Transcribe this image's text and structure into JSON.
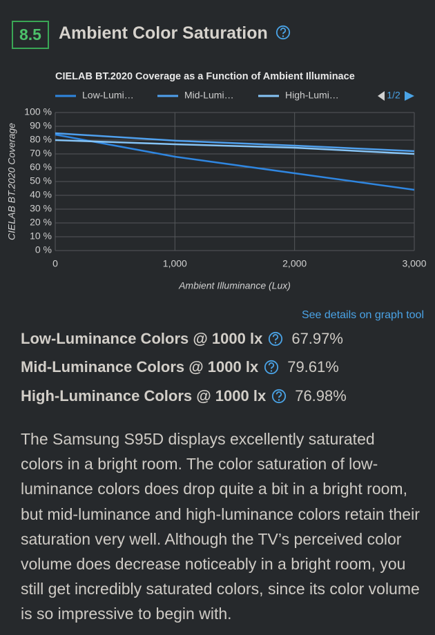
{
  "header": {
    "score": "8.5",
    "title": "Ambient Color Saturation"
  },
  "chart_data": {
    "type": "line",
    "title": "CIELAB BT.2020 Coverage as a Function of Ambient Illuminace",
    "x_label": "Ambient Illuminance (Lux)",
    "y_label": "CIELAB BT.2020 Coverage",
    "legend_page": "1/2",
    "x": [
      0,
      1000,
      2000,
      3000
    ],
    "series": [
      {
        "name": "Low-Lumi…",
        "color": "#2f86e0",
        "values": [
          84,
          68,
          56,
          44
        ]
      },
      {
        "name": "Mid-Lumi…",
        "color": "#4fa0ee",
        "values": [
          85,
          79.6,
          76,
          72
        ]
      },
      {
        "name": "High-Lumi…",
        "color": "#86c4f6",
        "values": [
          80,
          77,
          74.5,
          70
        ]
      }
    ],
    "xlim": [
      0,
      3000
    ],
    "xticks": [
      0,
      {
        "value": 1000,
        "label": "1,000"
      },
      {
        "value": 2000,
        "label": "2,000"
      },
      {
        "value": 3000,
        "label": "3,000"
      }
    ],
    "ylim": [
      0,
      100
    ],
    "yticks": [
      {
        "value": 0,
        "label": "0 %"
      },
      {
        "value": 10,
        "label": "10 %"
      },
      {
        "value": 20,
        "label": "20 %"
      },
      {
        "value": 30,
        "label": "30 %"
      },
      {
        "value": 40,
        "label": "40 %"
      },
      {
        "value": 50,
        "label": "50 %"
      },
      {
        "value": 60,
        "label": "60 %"
      },
      {
        "value": 70,
        "label": "70 %"
      },
      {
        "value": 80,
        "label": "80 %"
      },
      {
        "value": 90,
        "label": "90 %"
      },
      {
        "value": 100,
        "label": "100 %"
      }
    ],
    "grid": true
  },
  "link": "See details on graph tool",
  "metrics": [
    {
      "label": "Low-Luminance Colors @ 1000 lx",
      "value": "67.97%"
    },
    {
      "label": "Mid-Luminance Colors @ 1000 lx",
      "value": "79.61%"
    },
    {
      "label": "High-Luminance Colors @ 1000 lx",
      "value": "76.98%"
    }
  ],
  "paragraph": "The Samsung S95D displays excellently saturated colors in a bright room. The color saturation of low-luminance colors does drop quite a bit in a bright room, but mid-luminance and high-luminance colors retain their saturation very well. Although the TV’s perceived color volume does decrease noticeably in a bright room, you still get incredibly saturated colors, since its color volume is so impressive to begin with."
}
